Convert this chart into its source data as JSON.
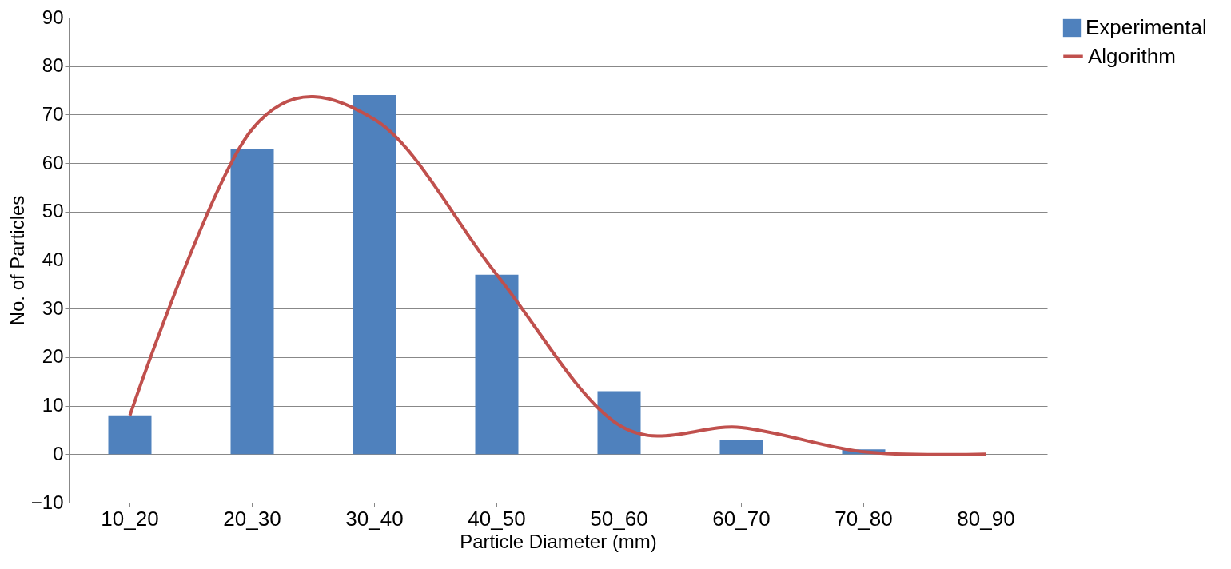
{
  "chart_data": {
    "type": "bar",
    "xlabel": "Particle Diameter (mm)",
    "ylabel": "No. of Particles",
    "categories": [
      "10_20",
      "20_30",
      "30_40",
      "40_50",
      "50_60",
      "60_70",
      "70_80",
      "80_90"
    ],
    "series": [
      {
        "name": "Experimental",
        "color": "#4f81bd",
        "values": [
          8,
          63,
          74,
          37,
          13,
          3,
          1,
          null
        ]
      },
      {
        "name": "Algorithm",
        "type": "line",
        "color": "#c0504d",
        "values": [
          8,
          67,
          69,
          37,
          6,
          5.5,
          0.5,
          0
        ]
      }
    ],
    "ylim": [
      -10,
      90
    ],
    "yticks": [
      -10,
      0,
      10,
      20,
      30,
      40,
      50,
      60,
      70,
      80,
      90
    ],
    "grid": "y",
    "legend": "right",
    "marker": "none",
    "line_style": "solid"
  }
}
